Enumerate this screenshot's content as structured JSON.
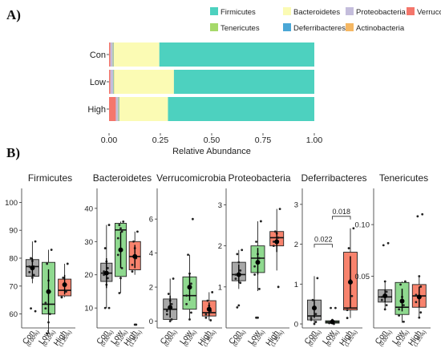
{
  "panel_labels": {
    "a": "A)",
    "b": "B)"
  },
  "chart_data": [
    {
      "type": "bar",
      "orientation": "horizontal",
      "stacked": true,
      "xlabel": "Relative Abundance",
      "xlim": [
        0,
        1
      ],
      "xticks": [
        "0.00",
        "0.25",
        "0.50",
        "0.75",
        "1.00"
      ],
      "categories": [
        "Con",
        "Low",
        "High"
      ],
      "legend_position": "top",
      "series": [
        {
          "name": "Verrucomicrobia",
          "color": "#f4766b",
          "values": [
            0.006,
            0.006,
            0.033
          ]
        },
        {
          "name": "Proteobacteria",
          "color": "#c4bddc",
          "values": [
            0.012,
            0.014,
            0.012
          ]
        },
        {
          "name": "Tenericutes",
          "color": "#a6d96a",
          "values": [
            0.002,
            0.002,
            0.002
          ]
        },
        {
          "name": "Deferribacteres",
          "color": "#4aa7d6",
          "values": [
            0.002,
            0.002,
            0.002
          ]
        },
        {
          "name": "Actinobacteria",
          "color": "#f5b763",
          "values": [
            0.001,
            0.001,
            0.001
          ]
        },
        {
          "name": "Bacteroidetes",
          "color": "#fbfbb4",
          "values": [
            0.222,
            0.291,
            0.237
          ]
        },
        {
          "name": "Firmicutes",
          "color": "#4dd1bf",
          "values": [
            0.755,
            0.684,
            0.713
          ]
        }
      ],
      "legend_order": [
        "Firmicutes",
        "Bacteroidetes",
        "Proteobacteria",
        "Verrucomicrobia",
        "Tenericutes",
        "Deferribacteres",
        "Actinobacteria"
      ]
    },
    {
      "type": "box",
      "group_colors": [
        "#a8a8a8",
        "#8fd98f",
        "#f8836d"
      ],
      "groups": [
        {
          "name": "Con",
          "dose": "(0.00%)"
        },
        {
          "name": "Low",
          "dose": "(0.10%)"
        },
        {
          "name": "High",
          "dose": "(1.25%)"
        }
      ],
      "panels": [
        {
          "title": "Firmicutes",
          "ylim": [
            55,
            105
          ],
          "yticks": [
            60,
            70,
            80,
            90,
            100
          ],
          "ytick_labels": [
            "60",
            "70",
            "80",
            "90",
            "100"
          ],
          "boxes": [
            {
              "q1": 73.5,
              "median": 77,
              "q3": 79.5,
              "whisker_low": 71,
              "whisker_high": 86,
              "mean": 76.5,
              "sd_low": 73.5,
              "sd_high": 80,
              "points": [
                86,
                80,
                79,
                77,
                77,
                75,
                74,
                73,
                62,
                61
              ]
            },
            {
              "q1": 60,
              "median": 63.5,
              "q3": 78.5,
              "whisker_low": 53,
              "whisker_high": 83,
              "mean": 68,
              "sd_low": 60,
              "sd_high": 76,
              "points": [
                83,
                78,
                72,
                68,
                64,
                62,
                60,
                57,
                53
              ]
            },
            {
              "q1": 66.5,
              "median": 68.5,
              "q3": 72.5,
              "whisker_low": 66,
              "whisker_high": 78,
              "mean": 70.5,
              "sd_low": 67,
              "sd_high": 74,
              "points": [
                78,
                73,
                70,
                68,
                66,
                66
              ]
            }
          ]
        },
        {
          "title": "Bacteroidetes",
          "ylim": [
            4,
            46
          ],
          "yticks": [
            10,
            20,
            30,
            40
          ],
          "ytick_labels": [
            "10",
            "20",
            "30",
            "40"
          ],
          "boxes": [
            {
              "q1": 18,
              "median": 20.5,
              "q3": 23.5,
              "whisker_low": 10,
              "whisker_high": 35,
              "mean": 20.5,
              "sd_low": 16,
              "sd_high": 25,
              "points": [
                35,
                28,
                24,
                22,
                21,
                20,
                19,
                17,
                10,
                10
              ]
            },
            {
              "q1": 19.5,
              "median": 33.5,
              "q3": 35.5,
              "whisker_low": 14.5,
              "whisker_high": 36,
              "mean": 27.5,
              "sd_low": 22,
              "sd_high": 33,
              "points": [
                36,
                35,
                34,
                33,
                31,
                26,
                22,
                19,
                14.5
              ]
            },
            {
              "q1": 21.5,
              "median": 25.5,
              "q3": 30,
              "whisker_low": 20,
              "whisker_high": 33,
              "mean": 25.5,
              "sd_low": 22,
              "sd_high": 29,
              "points": [
                33,
                30,
                28,
                25,
                23,
                21,
                5,
                5
              ]
            }
          ]
        },
        {
          "title": "Verrucomicrobia",
          "ylim": [
            -0.4,
            7.8
          ],
          "yticks": [
            0,
            2,
            4,
            6
          ],
          "ytick_labels": [
            "0",
            "2",
            "4",
            "6"
          ],
          "boxes": [
            {
              "q1": 0.1,
              "median": 0.7,
              "q3": 1.3,
              "whisker_low": 0,
              "whisker_high": 2.5,
              "mean": 0.8,
              "sd_low": 0.2,
              "sd_high": 1.5,
              "points": [
                2.5,
                1.6,
                1.2,
                1,
                0.6,
                0.4,
                0.1,
                0
              ]
            },
            {
              "q1": 0.7,
              "median": 1.5,
              "q3": 2.6,
              "whisker_low": 0.1,
              "whisker_high": 3.9,
              "mean": 2,
              "sd_low": 1.2,
              "sd_high": 2.8,
              "points": [
                6,
                3.9,
                2.8,
                2.2,
                1.5,
                1,
                0.5,
                0.1
              ]
            },
            {
              "q1": 0.3,
              "median": 0.5,
              "q3": 1.2,
              "whisker_low": 0.05,
              "whisker_high": 1.7,
              "mean": 0.7,
              "sd_low": 0.3,
              "sd_high": 1.1,
              "points": [
                1.7,
                1.2,
                0.9,
                0.6,
                0.4,
                0.2,
                0.05
              ]
            }
          ]
        },
        {
          "title": "Proteobacteria",
          "ylim": [
            0,
            3.4
          ],
          "yticks": [
            1,
            2,
            3
          ],
          "ytick_labels": [
            "1",
            "2",
            "3"
          ],
          "boxes": [
            {
              "q1": 1.15,
              "median": 1.3,
              "q3": 1.6,
              "whisker_low": 0.95,
              "whisker_high": 1.9,
              "mean": 1.3,
              "sd_low": 1.1,
              "sd_high": 1.55,
              "points": [
                1.9,
                1.8,
                1.6,
                1.4,
                1.3,
                1.2,
                1.1,
                0.55,
                0.5
              ]
            },
            {
              "q1": 1.35,
              "median": 1.7,
              "q3": 2.0,
              "whisker_low": 0.9,
              "whisker_high": 2.6,
              "mean": 1.6,
              "sd_low": 1.3,
              "sd_high": 1.95,
              "points": [
                2.6,
                2.1,
                1.8,
                1.7,
                1.5,
                1.3,
                0.95,
                0.25,
                0.25
              ]
            },
            {
              "q1": 2.0,
              "median": 2.2,
              "q3": 2.35,
              "whisker_low": 1.4,
              "whisker_high": 2.9,
              "mean": 2.1,
              "sd_low": 1.85,
              "sd_high": 2.35,
              "points": [
                2.9,
                2.35,
                2.3,
                2.2,
                2.1,
                2.0,
                1.0
              ]
            }
          ]
        },
        {
          "title": "Deferribacteres",
          "ylim": [
            -0.1,
            3.4
          ],
          "yticks": [
            0,
            1,
            2,
            3
          ],
          "ytick_labels": [
            "0",
            "1",
            "2",
            "3"
          ],
          "boxes": [
            {
              "q1": 0.1,
              "median": 0.2,
              "q3": 0.6,
              "whisker_low": 0,
              "whisker_high": 1.2,
              "mean": 0.4,
              "sd_low": 0.15,
              "sd_high": 0.6,
              "points": [
                1.15,
                0.6,
                0.4,
                0.25,
                0.15,
                0.1,
                0.05,
                0
              ]
            },
            {
              "q1": 0.02,
              "median": 0.05,
              "q3": 0.08,
              "whisker_low": 0,
              "whisker_high": 0.12,
              "mean": 0.05,
              "sd_low": 0.03,
              "sd_high": 0.08,
              "points": [
                0.4,
                0.4,
                0.1,
                0.06,
                0.04,
                0.02,
                0
              ]
            },
            {
              "q1": 0.35,
              "median": 0.4,
              "q3": 1.8,
              "whisker_low": 0.15,
              "whisker_high": 2.4,
              "mean": 1.05,
              "sd_low": 0.4,
              "sd_high": 1.7,
              "points": [
                2.4,
                1.9,
                1.1,
                0.7,
                0.35,
                0.15
              ]
            }
          ],
          "annotations": [
            {
              "from": 0,
              "to": 1,
              "label": "0.022",
              "y": 2.0
            },
            {
              "from": 1,
              "to": 2,
              "label": "0.018",
              "y": 2.7
            }
          ]
        },
        {
          "title": "Tenericutes",
          "ylim": [
            0,
            0.135
          ],
          "yticks": [
            0.05,
            0.1
          ],
          "ytick_labels": [
            "0.05",
            "0.10"
          ],
          "boxes": [
            {
              "q1": 0.025,
              "median": 0.03,
              "q3": 0.037,
              "whisker_low": 0.018,
              "whisker_high": 0.045,
              "mean": 0.031,
              "sd_low": 0.025,
              "sd_high": 0.037,
              "points": [
                0.082,
                0.08,
                0.045,
                0.035,
                0.03,
                0.027,
                0.022,
                0.018
              ]
            },
            {
              "q1": 0.013,
              "median": 0.02,
              "q3": 0.044,
              "whisker_low": 0.005,
              "whisker_high": 0.045,
              "mean": 0.026,
              "sd_low": 0.016,
              "sd_high": 0.038,
              "points": [
                0.045,
                0.042,
                0.03,
                0.022,
                0.018,
                0.012,
                0.006
              ]
            },
            {
              "q1": 0.02,
              "median": 0.031,
              "q3": 0.042,
              "whisker_low": 0.01,
              "whisker_high": 0.05,
              "mean": 0.03,
              "sd_low": 0.02,
              "sd_high": 0.04,
              "points": [
                0.11,
                0.108,
                0.05,
                0.04,
                0.032,
                0.025,
                0.015,
                0.01
              ]
            }
          ]
        }
      ]
    }
  ]
}
